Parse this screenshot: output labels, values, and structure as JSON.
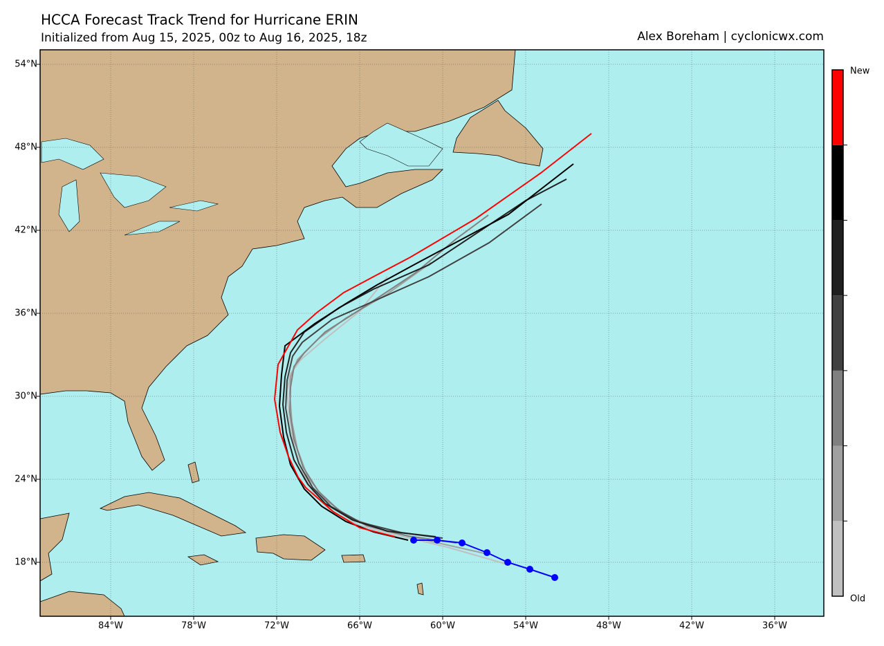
{
  "map": {
    "title": "HCCA Forecast Track Trend for Hurricane ERIN",
    "subtitle": "Initialized from Aug 15, 2025, 00z to Aug 16, 2025, 18z",
    "credit": "Alex Boreham | cyclonicwx.com",
    "xlim": [
      -89.1,
      -32.45
    ],
    "ylim": [
      14.1,
      55.05
    ],
    "xticks": [
      {
        "value": -84,
        "label": "84°W"
      },
      {
        "value": -78,
        "label": "78°W"
      },
      {
        "value": -72,
        "label": "72°W"
      },
      {
        "value": -66,
        "label": "66°W"
      },
      {
        "value": -60,
        "label": "60°W"
      },
      {
        "value": -54,
        "label": "54°W"
      },
      {
        "value": -48,
        "label": "48°W"
      },
      {
        "value": -42,
        "label": "42°W"
      },
      {
        "value": -36,
        "label": "36°W"
      }
    ],
    "yticks": [
      {
        "value": 18,
        "label": "18°N"
      },
      {
        "value": 24,
        "label": "24°N"
      },
      {
        "value": 30,
        "label": "30°N"
      },
      {
        "value": 36,
        "label": "36°N"
      },
      {
        "value": 42,
        "label": "42°N"
      },
      {
        "value": 48,
        "label": "48°N"
      },
      {
        "value": 54,
        "label": "54°N"
      }
    ],
    "grid": true,
    "tracks": [
      {
        "color": "#c0c0c0",
        "lon": [
          -55.5,
          -59.5,
          -63.0,
          -66.0,
          -68.0,
          -69.25,
          -70.1,
          -70.75,
          -71.1,
          -71.25,
          -71.0,
          -70.25,
          -68.5,
          -66.0,
          -64.0
        ],
        "lat": [
          17.9,
          19.05,
          19.9,
          20.65,
          21.65,
          22.9,
          24.4,
          26.4,
          28.65,
          30.4,
          31.65,
          32.65,
          34.15,
          36.15,
          38.65
        ]
      },
      {
        "color": "#a0a0a0",
        "lon": [
          -57.0,
          -61.0,
          -64.0,
          -66.75,
          -68.5,
          -69.75,
          -70.5,
          -70.9,
          -71.05,
          -71.0,
          -70.5,
          -69.0,
          -67.0,
          -64.0,
          -60.85
        ],
        "lat": [
          18.65,
          19.55,
          20.25,
          21.25,
          22.55,
          24.15,
          26.15,
          28.15,
          30.15,
          31.4,
          32.65,
          34.15,
          35.65,
          37.4,
          39.65
        ]
      },
      {
        "color": "#808080",
        "lon": [
          -59.0,
          -62.5,
          -65.5,
          -67.5,
          -69.0,
          -70.1,
          -70.75,
          -71.05,
          -71.0,
          -70.75,
          -70.0,
          -68.5,
          -66.0,
          -62.0,
          -59.0,
          -56.7
        ],
        "lat": [
          19.4,
          19.9,
          20.65,
          21.75,
          23.15,
          24.9,
          26.9,
          28.9,
          30.65,
          32.15,
          33.15,
          34.65,
          36.25,
          38.9,
          41.4,
          43.1
        ]
      },
      {
        "color": "#404040",
        "lon": [
          -60.0,
          -63.0,
          -66.0,
          -68.1,
          -69.4,
          -70.4,
          -71.0,
          -71.35,
          -71.25,
          -70.85,
          -70.15,
          -68.0,
          -65.5,
          -61.0,
          -56.65,
          -52.85
        ],
        "lat": [
          19.75,
          20.15,
          20.9,
          22.05,
          23.4,
          25.15,
          27.15,
          29.15,
          31.15,
          32.9,
          33.9,
          35.55,
          36.65,
          38.65,
          41.1,
          43.9
        ]
      },
      {
        "color": "#202020",
        "lon": [
          -60.5,
          -64.0,
          -66.5,
          -68.5,
          -69.75,
          -70.75,
          -71.3,
          -71.55,
          -71.4,
          -71.0,
          -70.0,
          -67.5,
          -65.0,
          -61.0,
          -54.0,
          -51.05
        ],
        "lat": [
          19.85,
          20.25,
          21.05,
          22.25,
          23.65,
          25.4,
          27.4,
          29.4,
          31.4,
          33.15,
          34.65,
          36.4,
          37.75,
          39.5,
          44.15,
          45.7
        ]
      },
      {
        "color": "#000000",
        "lon": [
          -62.5,
          -65.0,
          -67.0,
          -68.75,
          -70.0,
          -71.0,
          -71.5,
          -71.8,
          -71.65,
          -71.4,
          -69.25,
          -67.0,
          -64.75,
          -62.0,
          -55.25,
          -50.55
        ],
        "lat": [
          19.6,
          20.2,
          20.95,
          22.05,
          23.3,
          25.05,
          27.05,
          29.3,
          31.55,
          33.65,
          35.25,
          36.7,
          38.05,
          39.55,
          43.15,
          46.8
        ]
      },
      {
        "color": "#ff0000",
        "lon": [
          -63.45,
          -66.0,
          -67.9,
          -69.9,
          -70.45,
          -71.15,
          -71.75,
          -72.15,
          -71.9,
          -70.5,
          -69.1,
          -67.15,
          -65.0,
          -62.35,
          -57.6,
          -52.9,
          -49.25
        ],
        "lat": [
          19.85,
          20.5,
          21.65,
          23.4,
          24.15,
          25.65,
          27.4,
          29.8,
          32.3,
          34.8,
          36.05,
          37.5,
          38.65,
          40.05,
          42.85,
          46.15,
          49.0
        ]
      }
    ],
    "observed": {
      "color": "#0000ff",
      "lon": [
        -51.9,
        -53.7,
        -55.3,
        -56.8,
        -58.6,
        -60.4,
        -62.1
      ],
      "lat": [
        16.9,
        17.5,
        18.0,
        18.7,
        19.4,
        19.6,
        19.6
      ]
    },
    "colorbar": {
      "top_label": "New",
      "bottom_label": "Old"
    }
  }
}
